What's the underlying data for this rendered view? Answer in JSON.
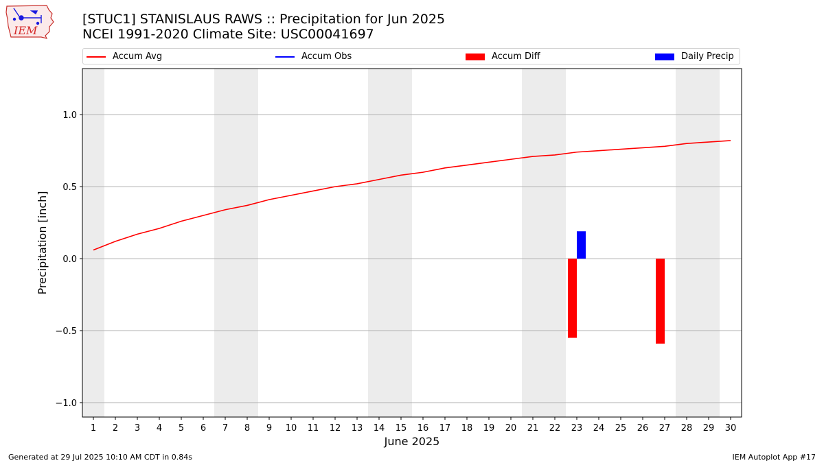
{
  "header": {
    "title": "[STUC1] STANISLAUS RAWS :: Precipitation for Jun 2025",
    "subtitle": "NCEI 1991-2020 Climate Site: USC00041697",
    "logo_text": "IEM"
  },
  "legend": {
    "items": [
      {
        "label": "Accum Avg",
        "color": "#ff0000",
        "kind": "line"
      },
      {
        "label": "Accum Obs",
        "color": "#0000ff",
        "kind": "line"
      },
      {
        "label": "Accum Diff",
        "color": "#ff0000",
        "kind": "box"
      },
      {
        "label": "Daily Precip",
        "color": "#0000ff",
        "kind": "box"
      }
    ]
  },
  "footer": {
    "generated": "Generated at 29 Jul 2025 10:10 AM CDT in 0.84s",
    "app": "IEM Autoplot App #17"
  },
  "chart_data": {
    "type": "bar",
    "xlabel": "June 2025",
    "ylabel": "Precipitation [inch]",
    "xlim": [
      0.5,
      30.5
    ],
    "ylim": [
      -1.1,
      1.32
    ],
    "yticks": [
      -1.0,
      -0.5,
      0.0,
      0.5,
      1.0
    ],
    "ytick_labels": [
      "−1.0",
      "−0.5",
      "0.0",
      "0.5",
      "1.0"
    ],
    "x": [
      1,
      2,
      3,
      4,
      5,
      6,
      7,
      8,
      9,
      10,
      11,
      12,
      13,
      14,
      15,
      16,
      17,
      18,
      19,
      20,
      21,
      22,
      23,
      24,
      25,
      26,
      27,
      28,
      29,
      30
    ],
    "weekend_shading": [
      [
        0.5,
        1.5
      ],
      [
        6.5,
        8.5
      ],
      [
        13.5,
        15.5
      ],
      [
        20.5,
        22.5
      ],
      [
        27.5,
        29.5
      ]
    ],
    "grid": "horizontal",
    "legend_position": "top",
    "series": [
      {
        "name": "Accum Avg",
        "type": "line",
        "color": "#ff0000",
        "values": [
          0.06,
          0.12,
          0.17,
          0.21,
          0.26,
          0.3,
          0.34,
          0.37,
          0.41,
          0.44,
          0.47,
          0.5,
          0.52,
          0.55,
          0.58,
          0.6,
          0.63,
          0.65,
          0.67,
          0.69,
          0.71,
          0.72,
          0.74,
          0.75,
          0.76,
          0.77,
          0.78,
          0.8,
          0.81,
          0.82
        ]
      },
      {
        "name": "Accum Diff",
        "type": "bar",
        "color": "#ff0000",
        "points": [
          {
            "x": 23,
            "y": -0.55
          },
          {
            "x": 27,
            "y": -0.59
          }
        ]
      },
      {
        "name": "Daily Precip",
        "type": "bar",
        "color": "#0000ff",
        "points": [
          {
            "x": 23,
            "y": 0.19
          }
        ]
      }
    ]
  }
}
